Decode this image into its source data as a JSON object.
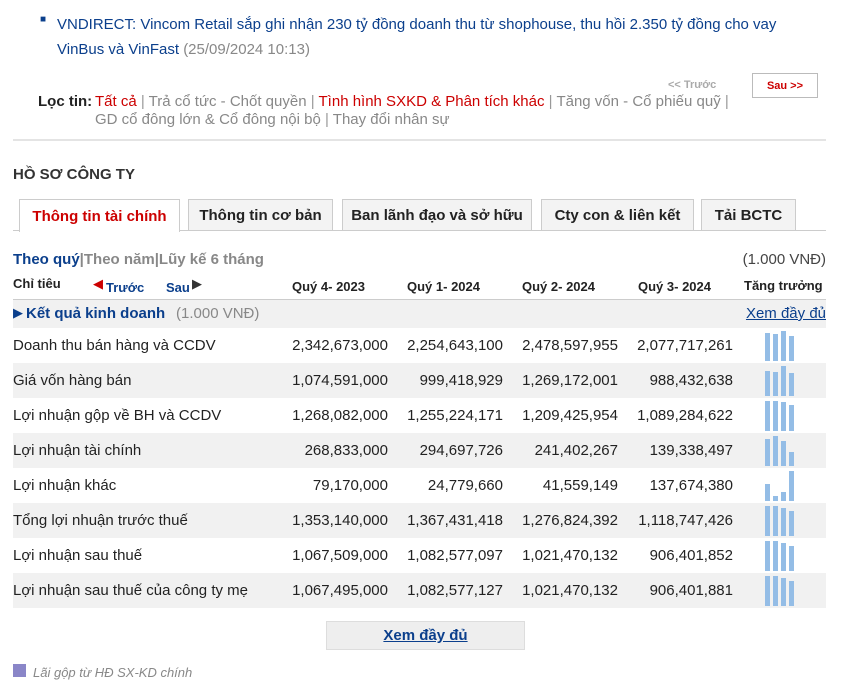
{
  "news": {
    "title": "VNDIRECT: Vincom Retail sắp ghi nhận 230 tỷ đồng doanh thu từ shophouse, thu hồi 2.350 tỷ đồng cho vay",
    "title_cont": "VinBus và VinFast",
    "date": "(25/09/2024 10:13)"
  },
  "pager": {
    "prev": "<< Trước",
    "next": "Sau >>"
  },
  "filter": {
    "label": "Lọc tin:",
    "items": [
      "Tất cả",
      "Trả cổ tức - Chốt quyền",
      "Tình hình SXKD & Phân tích khác",
      "Tăng vốn - Cổ phiếu quỹ",
      "GD cổ đông lớn & Cổ đông nội bộ",
      "Thay đổi nhân sự"
    ]
  },
  "profile": {
    "title": "HỒ SƠ CÔNG TY",
    "tabs": [
      "Thông tin tài chính",
      "Thông tin cơ bản",
      "Ban lãnh đạo và sở hữu",
      "Cty con & liên kết",
      "Tải BCTC"
    ],
    "periods": [
      "Theo quý",
      "Theo năm",
      "Lũy kế 6 tháng"
    ],
    "unit": "(1.000 VNĐ)",
    "table": {
      "label_header": "Chỉ tiêu",
      "prev": "Trước",
      "next": "Sau",
      "columns": [
        "Quý 4- 2023",
        "Quý 1- 2024",
        "Quý 2- 2024",
        "Quý 3- 2024"
      ],
      "growth": "Tăng trưởng",
      "section": "Kết quả kinh doanh",
      "section_unit": "(1.000 VNĐ)",
      "more": "Xem đầy đủ",
      "rows": [
        [
          "Doanh thu bán hàng và CCDV",
          "2,342,673,000",
          "2,254,643,100",
          "2,478,597,955",
          "2,077,717,261"
        ],
        [
          "Giá vốn hàng bán",
          "1,074,591,000",
          "999,418,929",
          "1,269,172,001",
          "988,432,638"
        ],
        [
          "Lợi nhuận gộp về BH và CCDV",
          "1,268,082,000",
          "1,255,224,171",
          "1,209,425,954",
          "1,089,284,622"
        ],
        [
          "Lợi nhuận tài chính",
          "268,833,000",
          "294,697,726",
          "241,402,267",
          "139,338,497"
        ],
        [
          "Lợi nhuận khác",
          "79,170,000",
          "24,779,660",
          "41,559,149",
          "137,674,380"
        ],
        [
          "Tổng lợi nhuận trước thuế",
          "1,353,140,000",
          "1,367,431,418",
          "1,276,824,392",
          "1,118,747,426"
        ],
        [
          "Lợi nhuận sau thuế",
          "1,067,509,000",
          "1,082,577,097",
          "1,021,470,132",
          "906,401,852"
        ],
        [
          "Lợi nhuận sau thuế của công ty mẹ",
          "1,067,495,000",
          "1,082,577,127",
          "1,021,470,132",
          "906,401,881"
        ]
      ]
    },
    "more_button": "Xem đầy đủ",
    "legend": "Lãi gộp từ HĐ SX-KD chính"
  }
}
